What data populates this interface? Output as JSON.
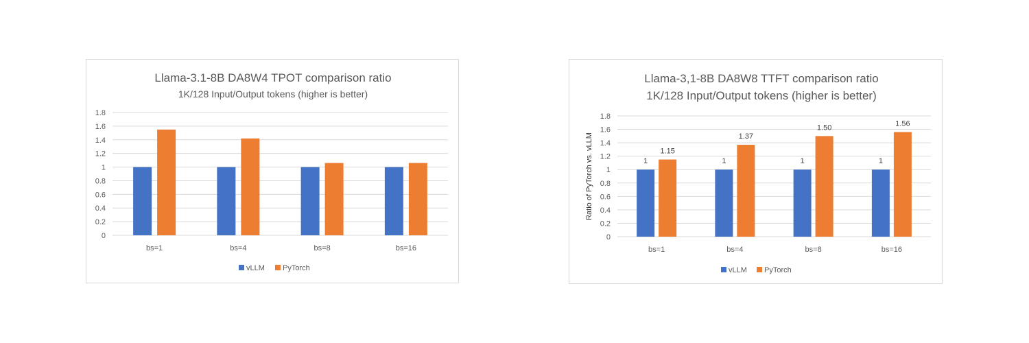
{
  "colors": {
    "vllm": "#4472C4",
    "pytorch": "#ED7D31",
    "grid": "#d9d9d9",
    "text": "#595959"
  },
  "chart_data": [
    {
      "type": "bar",
      "title": "Llama-3.1-8B DA8W4 TPOT comparison ratio",
      "subtitle": "1K/128 Input/Output tokens (higher is better)",
      "xlabel": "",
      "ylabel": "",
      "categories": [
        "bs=1",
        "bs=4",
        "bs=8",
        "bs=16"
      ],
      "yticks": [
        "1.8",
        "1.6",
        "1.4",
        "1.2",
        "1",
        "0.8",
        "0.6",
        "0.4",
        "0.2",
        "0"
      ],
      "ylim": [
        0,
        1.8
      ],
      "grid": true,
      "legend": "bottom",
      "series": [
        {
          "name": "vLLM",
          "values": [
            1,
            1,
            1,
            1
          ]
        },
        {
          "name": "PyTorch",
          "values": [
            1.55,
            1.42,
            1.06,
            1.06
          ]
        }
      ]
    },
    {
      "type": "bar",
      "title": "Llama-3,1-8B DA8W8 TTFT comparison ratio",
      "subtitle": "1K/128 Input/Output tokens (higher is better)",
      "xlabel": "",
      "ylabel": "Ratio of PyTorch vs. vLLM",
      "categories": [
        "bs=1",
        "bs=4",
        "bs=8",
        "bs=16"
      ],
      "yticks": [
        "1.8",
        "1.6",
        "1.4",
        "1.2",
        "1",
        "0.8",
        "0.6",
        "0.4",
        "0.2",
        "0"
      ],
      "ylim": [
        0,
        1.8
      ],
      "grid": true,
      "legend": "bottom",
      "series": [
        {
          "name": "vLLM",
          "values": [
            1,
            1,
            1,
            1
          ],
          "labels": [
            "1",
            "1",
            "1",
            "1"
          ]
        },
        {
          "name": "PyTorch",
          "values": [
            1.15,
            1.37,
            1.5,
            1.56
          ],
          "labels": [
            "1.15",
            "1.37",
            "1.50",
            "1.56"
          ]
        }
      ]
    }
  ]
}
